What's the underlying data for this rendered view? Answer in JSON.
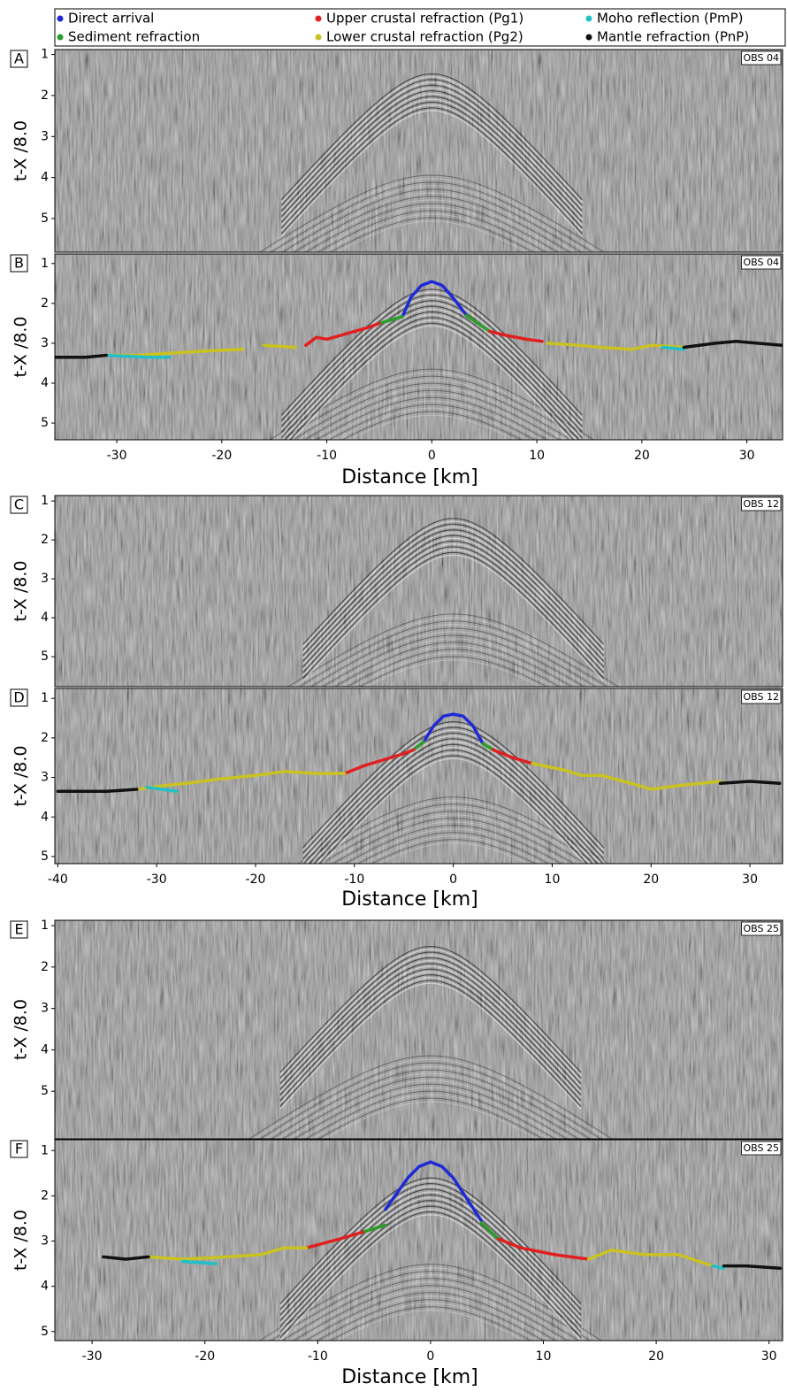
{
  "chart_data": [
    {
      "type": "image",
      "panel": "A",
      "annotation": "OBS 04",
      "y_label": "t-X /8.0",
      "ylim": [
        0.88,
        5.82
      ],
      "yticks": [
        1,
        2,
        3,
        4,
        5
      ]
    },
    {
      "type": "line",
      "panel": "B",
      "annotation": "OBS 04",
      "y_label": "t-X /8.0",
      "x_label": "Distance [km]",
      "xlim": [
        -35.9,
        33.4
      ],
      "xticks": [
        -30,
        -20,
        -10,
        0,
        10,
        20,
        30
      ],
      "ylim": [
        0.76,
        5.42
      ],
      "yticks": [
        1,
        2,
        3,
        4,
        5
      ],
      "series": [
        {
          "name": "Direct arrival",
          "color": "#1f2ad6",
          "x": [
            -2.8,
            -2,
            -1,
            0,
            1,
            2,
            3.3
          ],
          "values": [
            2.33,
            1.85,
            1.55,
            1.45,
            1.55,
            1.85,
            2.3
          ]
        },
        {
          "name": "Sediment refraction",
          "color": "#2a9d2a",
          "x": [
            -5,
            -2.8,
            null,
            3.3,
            5.5
          ],
          "values": [
            2.5,
            2.33,
            null,
            2.3,
            2.7
          ]
        },
        {
          "name": "Upper crustal refraction (Pg1)",
          "color": "#e02020",
          "x": [
            -12,
            -11,
            -10,
            -8,
            -6,
            -5,
            null,
            5.5,
            7,
            9,
            10.5
          ],
          "values": [
            3.05,
            2.85,
            2.9,
            2.75,
            2.6,
            2.5,
            null,
            2.7,
            2.8,
            2.9,
            2.95
          ]
        },
        {
          "name": "Lower crustal refraction (Pg2)",
          "color": "#c9c221",
          "x": [
            -31,
            -28,
            -25,
            -22,
            -18,
            null,
            -16,
            -13,
            null,
            11,
            14,
            16,
            19,
            21,
            24
          ],
          "values": [
            3.3,
            3.3,
            3.25,
            3.2,
            3.15,
            null,
            3.05,
            3.1,
            null,
            3.0,
            3.05,
            3.1,
            3.15,
            3.05,
            3.1
          ]
        },
        {
          "name": "Moho reflection (PmP)",
          "color": "#22c0c8",
          "x": [
            -31,
            -27,
            -25,
            null,
            22,
            24
          ],
          "values": [
            3.3,
            3.35,
            3.35,
            null,
            3.1,
            3.15
          ]
        },
        {
          "name": "Mantle refraction (PnP)",
          "color": "#111111",
          "x": [
            -35.9,
            -33,
            -31,
            null,
            24,
            27,
            29,
            31,
            33.4
          ],
          "values": [
            3.35,
            3.35,
            3.3,
            null,
            3.1,
            3.0,
            2.95,
            3.0,
            3.05
          ]
        }
      ]
    },
    {
      "type": "image",
      "panel": "C",
      "annotation": "OBS 12",
      "y_label": "t-X /8.0",
      "ylim": [
        0.86,
        5.77
      ],
      "yticks": [
        1,
        2,
        3,
        4,
        5
      ]
    },
    {
      "type": "line",
      "panel": "D",
      "annotation": "OBS 12",
      "y_label": "t-X /8.0",
      "x_label": "Distance [km]",
      "xlim": [
        -40.3,
        33.3
      ],
      "xticks": [
        -40,
        -30,
        -20,
        -10,
        0,
        10,
        20,
        30
      ],
      "ylim": [
        0.75,
        5.18
      ],
      "yticks": [
        1,
        2,
        3,
        4,
        5
      ],
      "series": [
        {
          "name": "Direct arrival",
          "color": "#1f2ad6",
          "x": [
            -3,
            -2,
            -1,
            0,
            1,
            2,
            3
          ],
          "values": [
            2.1,
            1.7,
            1.45,
            1.4,
            1.45,
            1.7,
            2.15
          ]
        },
        {
          "name": "Sediment refraction",
          "color": "#2a9d2a",
          "x": [
            -4,
            -3,
            null,
            3,
            4
          ],
          "values": [
            2.3,
            2.1,
            null,
            2.15,
            2.3
          ]
        },
        {
          "name": "Upper crustal refraction (Pg1)",
          "color": "#e02020",
          "x": [
            -11,
            -9,
            -7,
            -5,
            -4,
            null,
            4,
            6,
            8
          ],
          "values": [
            2.9,
            2.7,
            2.55,
            2.4,
            2.3,
            null,
            2.3,
            2.5,
            2.65
          ]
        },
        {
          "name": "Lower crustal refraction (Pg2)",
          "color": "#c9c221",
          "x": [
            -32,
            -29,
            -27,
            -24,
            -20,
            -17,
            -14,
            -11,
            null,
            8,
            11,
            13,
            15,
            18,
            20,
            23,
            27
          ],
          "values": [
            3.3,
            3.2,
            3.15,
            3.05,
            2.95,
            2.85,
            2.9,
            2.9,
            null,
            2.65,
            2.8,
            2.95,
            2.95,
            3.15,
            3.3,
            3.2,
            3.1
          ]
        },
        {
          "name": "Moho reflection (PmP)",
          "color": "#22c0c8",
          "x": [
            -31,
            -28
          ],
          "values": [
            3.25,
            3.35
          ]
        },
        {
          "name": "Mantle refraction (PnP)",
          "color": "#111111",
          "x": [
            -40,
            -35,
            -32,
            null,
            27,
            30,
            33
          ],
          "values": [
            3.35,
            3.35,
            3.3,
            null,
            3.15,
            3.1,
            3.15
          ]
        }
      ]
    },
    {
      "type": "image",
      "panel": "E",
      "annotation": "OBS 25",
      "y_label": "t-X /8.0",
      "ylim": [
        0.87,
        6.15
      ],
      "yticks": [
        1,
        2,
        3,
        4,
        5
      ]
    },
    {
      "type": "line",
      "panel": "F",
      "annotation": "OBS 25",
      "y_label": "t-X /8.0",
      "x_label": "Distance [km]",
      "xlim": [
        -33.3,
        31.2
      ],
      "xticks": [
        -30,
        -20,
        -10,
        0,
        10,
        20,
        30
      ],
      "ylim": [
        0.76,
        5.2
      ],
      "yticks": [
        1,
        2,
        3,
        4,
        5
      ],
      "series": [
        {
          "name": "Direct arrival",
          "color": "#1f2ad6",
          "x": [
            -4,
            -2,
            -1,
            0,
            1,
            2,
            4.5
          ],
          "values": [
            2.3,
            1.6,
            1.35,
            1.25,
            1.35,
            1.6,
            2.55
          ]
        },
        {
          "name": "Sediment refraction",
          "color": "#2a9d2a",
          "x": [
            -6,
            -4,
            null,
            4.5,
            6
          ],
          "values": [
            2.8,
            2.65,
            null,
            2.6,
            2.95
          ]
        },
        {
          "name": "Upper crustal refraction (Pg1)",
          "color": "#e02020",
          "x": [
            -11,
            -8,
            -6,
            null,
            6,
            8,
            11,
            14
          ],
          "values": [
            3.15,
            2.95,
            2.8,
            null,
            2.95,
            3.15,
            3.3,
            3.4
          ]
        },
        {
          "name": "Lower crustal refraction (Pg2)",
          "color": "#c9c221",
          "x": [
            -25,
            -22,
            -18,
            -15,
            -13,
            -11,
            null,
            14,
            16,
            19,
            22,
            25
          ],
          "values": [
            3.35,
            3.4,
            3.35,
            3.3,
            3.15,
            3.15,
            null,
            3.4,
            3.2,
            3.3,
            3.3,
            3.55
          ]
        },
        {
          "name": "Moho reflection (PmP)",
          "color": "#22c0c8",
          "x": [
            -22,
            -19,
            null,
            25,
            26
          ],
          "values": [
            3.45,
            3.5,
            null,
            3.55,
            3.6
          ]
        },
        {
          "name": "Mantle refraction (PnP)",
          "color": "#111111",
          "x": [
            -29,
            -27,
            -25,
            null,
            26,
            28,
            31
          ],
          "values": [
            3.35,
            3.4,
            3.35,
            null,
            3.55,
            3.55,
            3.6
          ]
        }
      ]
    }
  ]
}
